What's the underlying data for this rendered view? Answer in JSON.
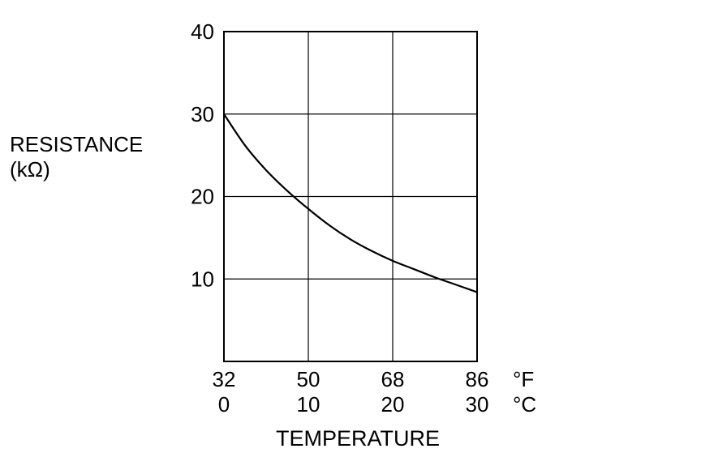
{
  "chart_data": {
    "type": "line",
    "title": "",
    "ylabel_lines": [
      "RESISTANCE",
      "(kΩ)"
    ],
    "xlabel": "TEMPERATURE",
    "y_ticks": [
      "10",
      "20",
      "30",
      "40"
    ],
    "x_ticks_f": [
      "32",
      "50",
      "68",
      "86"
    ],
    "x_ticks_c": [
      "0",
      "10",
      "20",
      "30"
    ],
    "x_unit_f": "°F",
    "x_unit_c": "°C",
    "xlim": [
      0,
      30
    ],
    "ylim": [
      0,
      40
    ],
    "grid": true,
    "series": [
      {
        "x": [
          0,
          2.5,
          5,
          7.5,
          10,
          12.5,
          15,
          17.5,
          20,
          22.5,
          25,
          27.5,
          30
        ],
        "values": [
          30.0,
          26.2,
          23.2,
          20.7,
          18.5,
          16.5,
          14.8,
          13.4,
          12.2,
          11.2,
          10.2,
          9.3,
          8.4
        ]
      }
    ],
    "colors": {
      "line": "#000000",
      "grid": "#000000",
      "background": "#ffffff"
    }
  }
}
